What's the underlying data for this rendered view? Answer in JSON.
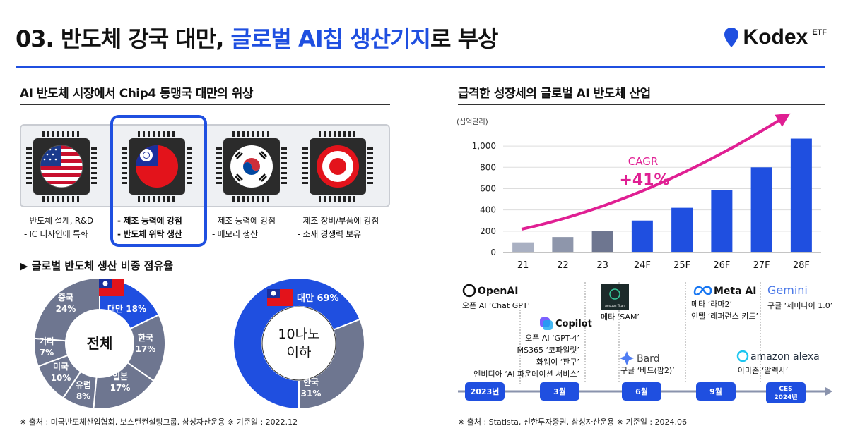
{
  "header": {
    "title_part1": "03. 반도체 강국 대만, ",
    "title_highlight": "글로벌 AI칩 생산기지",
    "title_part2": "로 부상",
    "logo_brand": "Kodex",
    "logo_suffix": "ETF"
  },
  "colors": {
    "accent": "#1f4fe0",
    "gray": "#6e7690",
    "magenta": "#e01f93"
  },
  "left": {
    "title": "AI 반도체 시장에서 Chip4 동맹국 대만의 위상",
    "chips": [
      {
        "country": "미국",
        "flag": "us-flag-icon",
        "desc": [
          "- 반도체 설계, R&D",
          "- IC 디자인에 특화"
        ]
      },
      {
        "country": "대만",
        "flag": "taiwan-flag-icon",
        "desc": [
          "- 제조 능력에 강점",
          "- 반도체 위탁 생산"
        ]
      },
      {
        "country": "한국",
        "flag": "korea-flag-icon",
        "desc": [
          "- 제조 능력에 강점",
          "- 메모리 생산"
        ]
      },
      {
        "country": "일본",
        "flag": "japan-flag-icon",
        "desc": [
          "- 제조 장비/부품에 강점",
          "- 소재 경쟁력 보유"
        ]
      }
    ],
    "share_title": "▶ 글로벌 반도체 생산 비중 점유율",
    "donut_total": {
      "center": "전체",
      "segments": [
        {
          "name": "대만",
          "pct": 18,
          "color": "#1f4fe0"
        },
        {
          "name": "한국",
          "pct": 17,
          "color": "#6e7690"
        },
        {
          "name": "일본",
          "pct": 17,
          "color": "#6e7690"
        },
        {
          "name": "유럽",
          "pct": 8,
          "color": "#6e7690"
        },
        {
          "name": "미국",
          "pct": 10,
          "color": "#6e7690"
        },
        {
          "name": "기타",
          "pct": 7,
          "color": "#6e7690"
        },
        {
          "name": "중국",
          "pct": 24,
          "color": "#6e7690"
        }
      ],
      "labels": [
        "대만 18%",
        "한국",
        "17%",
        "일본",
        "17%",
        "유럽",
        "8%",
        "미국",
        "10%",
        "기타",
        "7%",
        "중국",
        "24%"
      ]
    },
    "donut_10nm": {
      "center_line1": "10나노",
      "center_line2": "이하",
      "segments": [
        {
          "name": "대만",
          "pct": 69,
          "color": "#1f4fe0"
        },
        {
          "name": "한국",
          "pct": 31,
          "color": "#6e7690"
        }
      ],
      "label_tw": "대만 69%",
      "label_kr1": "한국",
      "label_kr2": "31%"
    },
    "source": "※ 출처 : 미국반도체산업협회, 보스턴컨설팅그룹, 삼성자산운용 ※ 기준일 : 2022.12"
  },
  "right": {
    "title": "급격한 성장세의 글로벌 AI 반도체 산업",
    "source": "※ 출처 : Statista, 신한투자증권, 삼성자산운용 ※ 기준일 : 2024.06",
    "timeline": {
      "badges": [
        "2023년",
        "3월",
        "6월",
        "9월",
        "CES",
        "2024년"
      ],
      "events": [
        {
          "brand": "OpenAI",
          "lines": [
            "오픈 AI ‘Chat GPT’"
          ]
        },
        {
          "brand": "Copilot",
          "lines": [
            "오픈 AI ‘GPT-4’",
            "MS365 ‘코파일럿’",
            "화웨이 ‘판구’",
            "엔비디아 ‘AI 파운데이션 서비스’"
          ]
        },
        {
          "brand": "Amazon Titan",
          "lines": [
            "메타 ‘SAM’"
          ]
        },
        {
          "brand": "Bard",
          "lines": [
            "구글 ‘바드(팜2)’"
          ]
        },
        {
          "brand": "Meta AI",
          "lines": [
            "메타 ‘라마2’",
            "인텔 ‘레퍼런스 키트’"
          ]
        },
        {
          "brand": "amazon alexa",
          "lines": [
            "아마존 ‘알렉사’"
          ]
        },
        {
          "brand": "Gemini",
          "lines": [
            "구글 ‘제미나이 1.0’"
          ]
        }
      ]
    }
  },
  "chart_data": {
    "type": "bar",
    "title": "",
    "ylabel": "(십억달러)",
    "categories": [
      "21",
      "22",
      "23",
      "24F",
      "25F",
      "26F",
      "27F",
      "28F"
    ],
    "values": [
      95,
      145,
      205,
      300,
      420,
      585,
      800,
      1070
    ],
    "colors": [
      "#a9b0c2",
      "#8e96ab",
      "#6e7690",
      "#1f4fe0",
      "#1f4fe0",
      "#1f4fe0",
      "#1f4fe0",
      "#1f4fe0"
    ],
    "ylim": [
      0,
      1100
    ],
    "yticks": [
      0,
      200,
      400,
      600,
      800,
      1000
    ],
    "ytick_labels": [
      "0",
      "200",
      "400",
      "600",
      "800",
      "1,000"
    ],
    "annotation_label": "CAGR",
    "annotation_value": "+41%",
    "grid": true
  }
}
